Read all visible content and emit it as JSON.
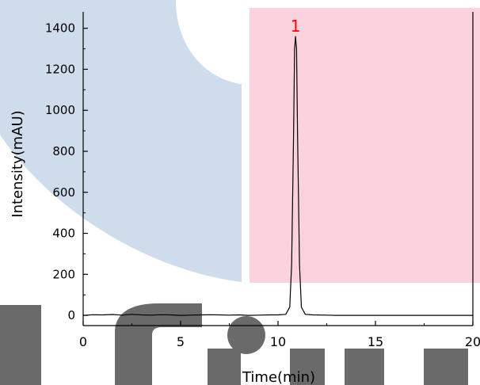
{
  "chart_data": {
    "type": "line",
    "xlabel": "Time(min)",
    "ylabel": "Intensity(mAU)",
    "xlim": [
      0,
      20
    ],
    "ylim": [
      -50,
      1480
    ],
    "x_ticks": [
      0,
      5,
      10,
      15,
      20
    ],
    "y_ticks": [
      0,
      200,
      400,
      600,
      800,
      1000,
      1200,
      1400
    ],
    "grid": false,
    "line_color": "#000000",
    "series": [
      {
        "x": [
          0,
          0.5,
          1.0,
          1.5,
          2.0,
          2.5,
          3.0,
          3.5,
          4.0,
          4.5,
          5.0,
          5.5,
          6.0,
          6.5,
          7.0,
          7.5,
          8.0,
          8.5,
          9.0,
          9.5,
          10.0,
          10.4,
          10.6,
          10.7,
          10.8,
          10.85,
          10.9,
          10.95,
          11.0,
          11.1,
          11.2,
          11.4,
          11.8,
          12.5,
          13.0,
          14.0,
          15.0,
          16.0,
          17.0,
          18.0,
          19.0,
          20.0
        ],
        "y": [
          0,
          3,
          2,
          4,
          1,
          5,
          2,
          1,
          3,
          2,
          0,
          1,
          2,
          3,
          2,
          1,
          2,
          0,
          1,
          2,
          2,
          5,
          40,
          250,
          900,
          1300,
          1360,
          1300,
          900,
          250,
          40,
          5,
          2,
          1,
          0,
          0,
          0,
          0,
          0,
          0,
          0,
          0
        ]
      }
    ],
    "annotations": [
      {
        "text": "1",
        "x": 10.9,
        "y": 1360,
        "color": "#ff0000"
      }
    ]
  },
  "background": {
    "watermark_colors": {
      "blue": "#cfdcec",
      "pink": "#fcd3dd",
      "gray": "#6a6a6a"
    }
  }
}
